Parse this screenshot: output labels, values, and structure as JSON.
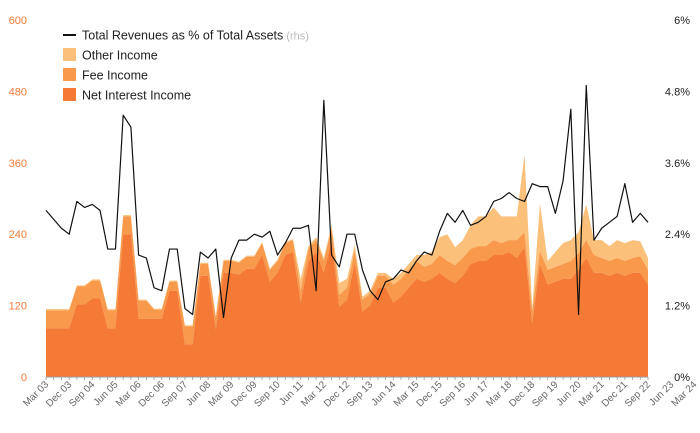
{
  "chart_data": {
    "type": "area",
    "legend_position": "top-left",
    "grid": false,
    "y_left": {
      "ylim": [
        0,
        600
      ],
      "ticks": [
        0,
        120,
        240,
        360,
        480,
        600
      ],
      "tick_labels": [
        "0",
        "120",
        "240",
        "360",
        "480",
        "600"
      ]
    },
    "y_right": {
      "ylim": [
        0,
        6
      ],
      "ticks": [
        0,
        1.2,
        2.4,
        3.6,
        4.8,
        6
      ],
      "tick_labels": [
        "0%",
        "1.2%",
        "2.4%",
        "3.6%",
        "4.8%",
        "6%"
      ]
    },
    "x_tick_labels": [
      "Mar 03",
      "Dec 03",
      "Sep 04",
      "Jun 05",
      "Mar 06",
      "Dec 06",
      "Sep 07",
      "Jun 08",
      "Mar 09",
      "Dec 09",
      "Sep 10",
      "Jun 11",
      "Mar 12",
      "Dec 12",
      "Sep 13",
      "Jun 14",
      "Mar 15",
      "Dec 15",
      "Sep 16",
      "Jun 17",
      "Mar 18",
      "Dec 18",
      "Sep 19",
      "Jun 20",
      "Mar 21",
      "Dec 21",
      "Sep 22",
      "Jun 23",
      "Mar 24"
    ],
    "x_start": "Mar 03",
    "x_end": "Jun 24",
    "x_step": "quarter",
    "series": [
      {
        "name": "Net Interest Income",
        "type": "area",
        "axis": "left",
        "color": "#f47a36",
        "values": [
          82,
          82,
          82,
          82,
          122,
          122,
          132,
          132,
          82,
          82,
          240,
          240,
          98,
          98,
          98,
          98,
          145,
          145,
          55,
          55,
          170,
          170,
          80,
          175,
          175,
          172,
          182,
          182,
          205,
          160,
          175,
          205,
          210,
          125,
          195,
          210,
          175,
          230,
          118,
          130,
          192,
          110,
          120,
          150,
          150,
          125,
          135,
          150,
          165,
          160,
          165,
          175,
          165,
          158,
          170,
          190,
          195,
          195,
          205,
          205,
          210,
          200,
          218,
          90,
          190,
          155,
          160,
          165,
          165,
          180,
          200,
          175,
          175,
          170,
          175,
          170,
          175,
          175,
          155
        ]
      },
      {
        "name": "Fee Income",
        "type": "area",
        "axis": "left",
        "color": "#f8994c",
        "values": [
          30,
          30,
          30,
          30,
          30,
          30,
          30,
          30,
          30,
          30,
          30,
          30,
          30,
          30,
          15,
          15,
          15,
          15,
          30,
          30,
          20,
          20,
          20,
          20,
          20,
          20,
          20,
          20,
          20,
          20,
          20,
          20,
          20,
          20,
          20,
          20,
          20,
          20,
          20,
          20,
          20,
          20,
          20,
          20,
          20,
          30,
          30,
          30,
          30,
          25,
          25,
          30,
          30,
          30,
          30,
          25,
          25,
          25,
          25,
          20,
          20,
          30,
          25,
          20,
          22,
          25,
          25,
          25,
          30,
          28,
          30,
          30,
          25,
          25,
          25,
          25,
          25,
          28,
          25
        ]
      },
      {
        "name": "Other Income",
        "type": "area",
        "axis": "left",
        "color": "#fbc07a",
        "values": [
          2,
          2,
          2,
          2,
          2,
          2,
          2,
          2,
          2,
          2,
          2,
          2,
          2,
          2,
          2,
          2,
          2,
          2,
          2,
          2,
          2,
          2,
          2,
          2,
          2,
          2,
          2,
          2,
          2,
          2,
          2,
          2,
          2,
          20,
          5,
          5,
          5,
          5,
          20,
          15,
          10,
          5,
          5,
          5,
          5,
          10,
          10,
          10,
          10,
          20,
          20,
          30,
          45,
          30,
          30,
          40,
          50,
          50,
          55,
          45,
          40,
          40,
          130,
          5,
          80,
          15,
          25,
          35,
          35,
          35,
          60,
          25,
          30,
          25,
          30,
          30,
          30,
          25,
          20
        ]
      },
      {
        "name": "Total Revenues as % of Total Assets",
        "note": "(rhs)",
        "type": "line",
        "axis": "right",
        "color": "#111111",
        "values": [
          2.8,
          2.65,
          2.5,
          2.4,
          2.95,
          2.85,
          2.9,
          2.8,
          2.15,
          2.15,
          4.4,
          4.2,
          2.05,
          2.0,
          1.5,
          1.45,
          2.15,
          2.15,
          1.15,
          1.05,
          2.1,
          2.0,
          2.15,
          1.0,
          2.0,
          2.3,
          2.3,
          2.4,
          2.35,
          2.45,
          2.05,
          2.25,
          2.5,
          2.5,
          2.55,
          1.45,
          4.65,
          2.05,
          1.85,
          2.4,
          2.4,
          1.8,
          1.45,
          1.3,
          1.6,
          1.65,
          1.8,
          1.75,
          1.95,
          2.1,
          2.05,
          2.45,
          2.75,
          2.6,
          2.8,
          2.55,
          2.6,
          2.7,
          2.95,
          3.0,
          3.1,
          3.0,
          2.95,
          3.25,
          3.2,
          3.2,
          2.75,
          3.3,
          4.5,
          1.05,
          4.9,
          2.3,
          2.5,
          2.6,
          2.7,
          3.25,
          2.6,
          2.75,
          2.6
        ]
      }
    ]
  }
}
